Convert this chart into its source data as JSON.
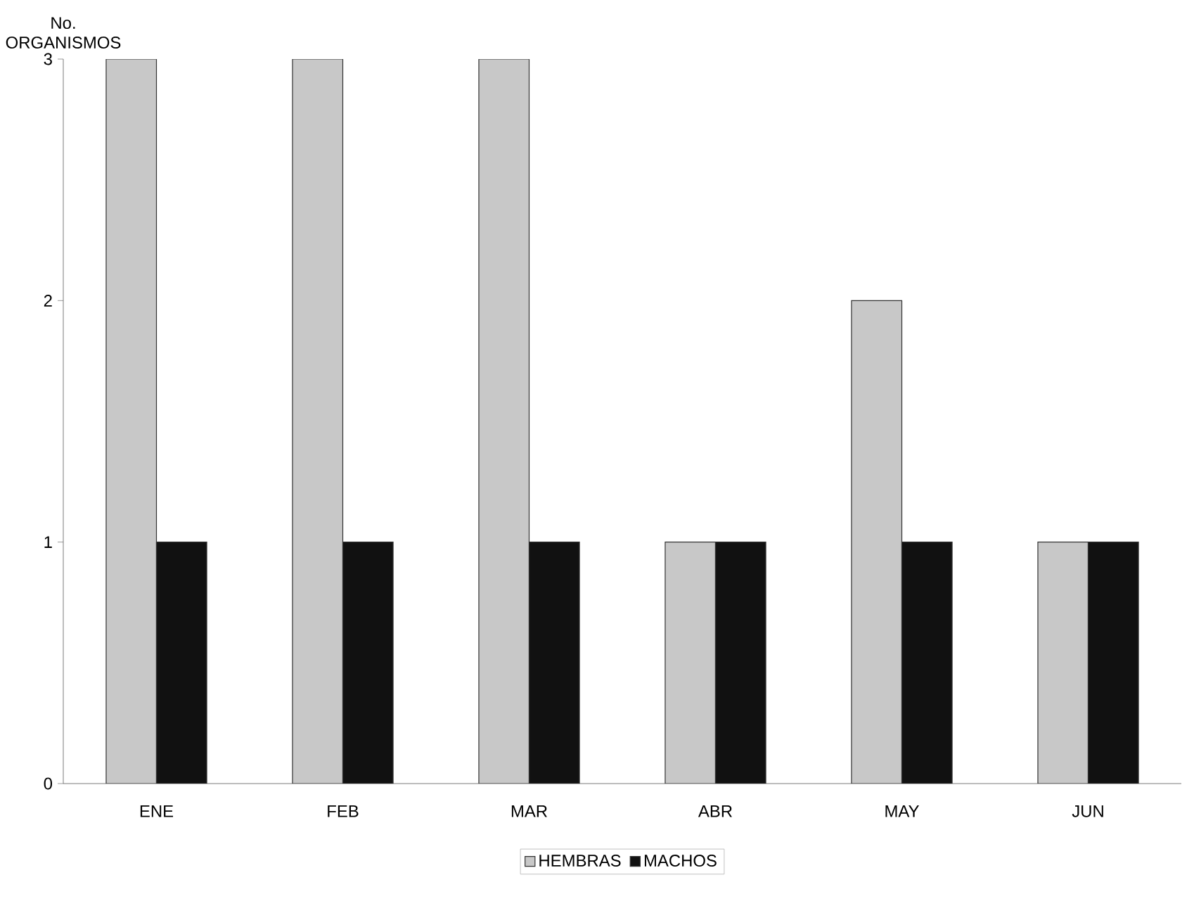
{
  "chart_data": {
    "type": "bar",
    "ylabel": "No. ORGANISMOS",
    "categories": [
      "ENE",
      "FEB",
      "MAR",
      "ABR",
      "MAY",
      "JUN"
    ],
    "series": [
      {
        "name": "HEMBRAS",
        "color": "#c8c8c8",
        "values": [
          3,
          3,
          3,
          1,
          2,
          1
        ]
      },
      {
        "name": "MACHOS",
        "color": "#111111",
        "values": [
          1,
          1,
          1,
          1,
          1,
          1
        ]
      }
    ],
    "ylim": [
      0,
      3
    ],
    "yticks": [
      0,
      1,
      2,
      3
    ],
    "legend": "bottom"
  }
}
